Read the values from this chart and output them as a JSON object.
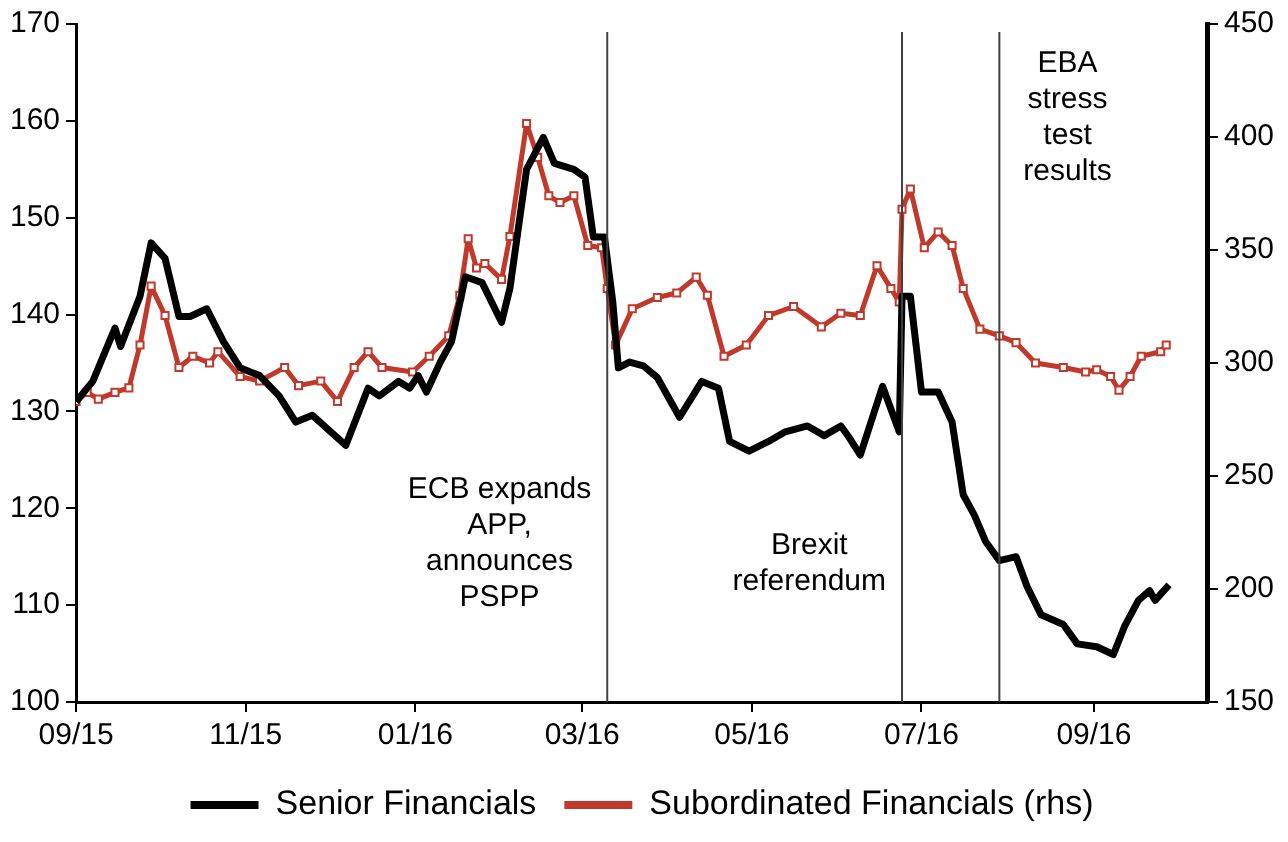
{
  "chart_data": {
    "type": "line",
    "series": [
      {
        "name": "Senior Financials",
        "color": "#000000",
        "marker": "none",
        "x": [
          "2015-09-01",
          "2015-09-07",
          "2015-09-15",
          "2015-09-17",
          "2015-09-24",
          "2015-09-28",
          "2015-10-03",
          "2015-10-08",
          "2015-10-12",
          "2015-10-18",
          "2015-10-24",
          "2015-10-30",
          "2015-11-06",
          "2015-11-13",
          "2015-11-19",
          "2015-11-25",
          "2015-11-30",
          "2015-12-07",
          "2015-12-15",
          "2015-12-19",
          "2015-12-26",
          "2015-12-30",
          "2016-01-02",
          "2016-01-05",
          "2016-01-10",
          "2016-01-14",
          "2016-01-19",
          "2016-01-25",
          "2016-02-01",
          "2016-02-04",
          "2016-02-10",
          "2016-02-16",
          "2016-02-20",
          "2016-02-27",
          "2016-03-02",
          "2016-03-05",
          "2016-03-09",
          "2016-03-12",
          "2016-03-14",
          "2016-03-18",
          "2016-03-23",
          "2016-03-28",
          "2016-04-05",
          "2016-04-13",
          "2016-04-19",
          "2016-04-23",
          "2016-04-30",
          "2016-05-07",
          "2016-05-13",
          "2016-05-21",
          "2016-05-27",
          "2016-06-02",
          "2016-06-05",
          "2016-06-09",
          "2016-06-17",
          "2016-06-23",
          "2016-06-24",
          "2016-06-27",
          "2016-07-01",
          "2016-07-07",
          "2016-07-12",
          "2016-07-16",
          "2016-07-20",
          "2016-07-24",
          "2016-07-29",
          "2016-08-04",
          "2016-08-08",
          "2016-08-13",
          "2016-08-21",
          "2016-08-26",
          "2016-09-02",
          "2016-09-08",
          "2016-09-12",
          "2016-09-17",
          "2016-09-21",
          "2016-09-23",
          "2016-09-28"
        ],
        "values": [
          131.0,
          133.1,
          138.6,
          136.7,
          141.9,
          147.4,
          145.8,
          139.8,
          139.8,
          140.6,
          137.2,
          134.5,
          133.7,
          131.6,
          128.9,
          129.6,
          128.3,
          126.5,
          132.4,
          131.6,
          133.1,
          132.4,
          133.7,
          132.0,
          135.1,
          137.2,
          143.9,
          143.3,
          139.2,
          142.7,
          155.0,
          158.3,
          155.6,
          155.0,
          154.2,
          148.0,
          148.0,
          141.3,
          134.5,
          135.1,
          134.7,
          133.5,
          129.4,
          133.1,
          132.4,
          126.9,
          125.9,
          126.9,
          127.9,
          128.5,
          127.5,
          128.5,
          127.3,
          125.5,
          132.6,
          127.9,
          141.9,
          141.9,
          132.0,
          132.0,
          128.9,
          121.4,
          119.3,
          116.6,
          114.6,
          115.0,
          111.9,
          109.0,
          108.0,
          106.0,
          105.7,
          104.9,
          107.8,
          110.5,
          111.5,
          110.5,
          112.1
        ]
      },
      {
        "name": "Subordinated Financials (rhs)",
        "color": "#c0392b",
        "marker": "square",
        "axis": "y2",
        "x": [
          "2015-09-01",
          "2015-09-05",
          "2015-09-09",
          "2015-09-15",
          "2015-09-20",
          "2015-09-24",
          "2015-09-28",
          "2015-10-03",
          "2015-10-08",
          "2015-10-13",
          "2015-10-19",
          "2015-10-22",
          "2015-10-30",
          "2015-11-06",
          "2015-11-15",
          "2015-11-20",
          "2015-11-28",
          "2015-12-04",
          "2015-12-10",
          "2015-12-15",
          "2015-12-20",
          "2015-12-31",
          "2016-01-06",
          "2016-01-13",
          "2016-01-17",
          "2016-01-20",
          "2016-01-23",
          "2016-01-26",
          "2016-02-01",
          "2016-02-04",
          "2016-02-10",
          "2016-02-14",
          "2016-02-18",
          "2016-02-22",
          "2016-02-27",
          "2016-03-03",
          "2016-03-08",
          "2016-03-10",
          "2016-03-13",
          "2016-03-19",
          "2016-03-28",
          "2016-04-04",
          "2016-04-11",
          "2016-04-15",
          "2016-04-21",
          "2016-04-29",
          "2016-05-07",
          "2016-05-16",
          "2016-05-26",
          "2016-06-02",
          "2016-06-09",
          "2016-06-15",
          "2016-06-20",
          "2016-06-23",
          "2016-06-24",
          "2016-06-27",
          "2016-07-02",
          "2016-07-07",
          "2016-07-12",
          "2016-07-16",
          "2016-07-22",
          "2016-07-29",
          "2016-08-04",
          "2016-08-11",
          "2016-08-21",
          "2016-08-29",
          "2016-09-02",
          "2016-09-07",
          "2016-09-10",
          "2016-09-14",
          "2016-09-18",
          "2016-09-25",
          "2016-09-27"
        ],
        "values": [
          283,
          287,
          284,
          287,
          289,
          308,
          334,
          321,
          298,
          303,
          300,
          305,
          294,
          292,
          298,
          290,
          292,
          283,
          298,
          305,
          298,
          296,
          303,
          312,
          330,
          355,
          342,
          344,
          337,
          356,
          406,
          391,
          374,
          371,
          374,
          352,
          351,
          333,
          308,
          324,
          329,
          331,
          338,
          330,
          303,
          308,
          321,
          325,
          316,
          322,
          321,
          343,
          333,
          327,
          368,
          377,
          351,
          358,
          352,
          333,
          315,
          312,
          309,
          300,
          298,
          296,
          297,
          294,
          288,
          294,
          303,
          305,
          308
        ]
      }
    ],
    "xlim": [
      "2015-09-01",
      "2016-10-12"
    ],
    "xticks": [
      {
        "value": "2015-09-01",
        "label": "09/15"
      },
      {
        "value": "2015-11-01",
        "label": "11/15"
      },
      {
        "value": "2016-01-01",
        "label": "01/16"
      },
      {
        "value": "2016-03-01",
        "label": "03/16"
      },
      {
        "value": "2016-05-01",
        "label": "05/16"
      },
      {
        "value": "2016-07-01",
        "label": "07/16"
      },
      {
        "value": "2016-09-01",
        "label": "09/16"
      }
    ],
    "ylim": [
      100,
      170
    ],
    "yticks": [
      100,
      110,
      120,
      130,
      140,
      150,
      160,
      170
    ],
    "y2lim": [
      150,
      450
    ],
    "y2ticks": [
      150,
      200,
      250,
      300,
      350,
      400,
      450
    ],
    "ref_lines": [
      {
        "axis": "x",
        "value": "2016-03-10",
        "color": "#404040",
        "label": "ECB expands\nAPP,\nannounces\nPSPP"
      },
      {
        "axis": "x",
        "value": "2016-06-24",
        "color": "#404040",
        "label": "Brexit\nreferendum"
      },
      {
        "axis": "x",
        "value": "2016-07-29",
        "color": "#404040",
        "label": "EBA\nstress\ntest\nresults"
      }
    ],
    "grid": false,
    "legend": "bottom"
  }
}
